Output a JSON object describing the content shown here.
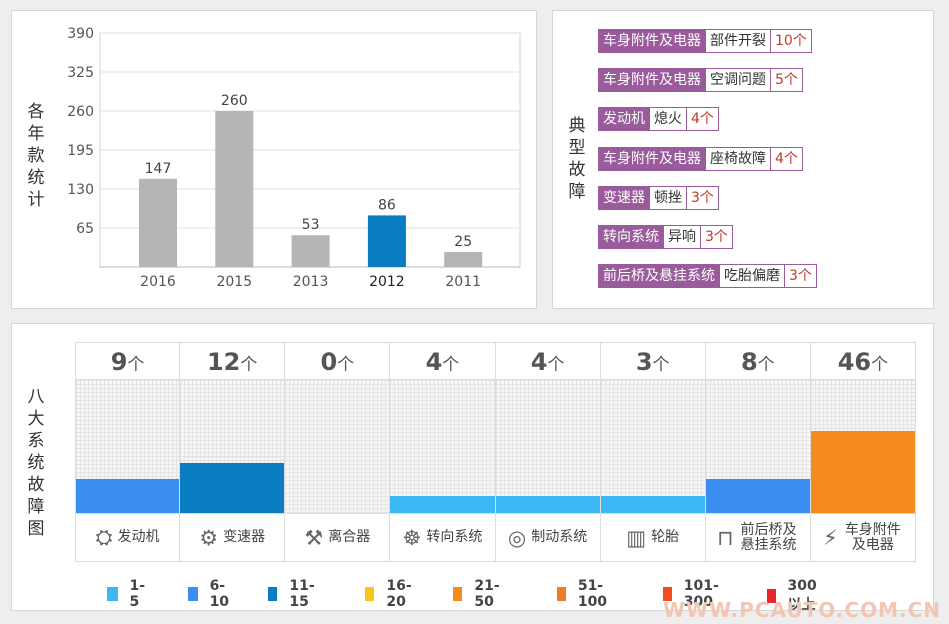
{
  "year_panel": {
    "title": "各年款统计"
  },
  "chart_data": {
    "type": "bar",
    "categories": [
      "2016",
      "2015",
      "2013",
      "2012",
      "2011"
    ],
    "values": [
      147,
      260,
      53,
      86,
      25
    ],
    "highlight": "2012",
    "yticks": [
      65,
      130,
      195,
      260,
      325,
      390
    ],
    "ylim": [
      0,
      390
    ],
    "grid": true,
    "colors": {
      "default": "#b5b5b5",
      "highlight": "#0a7cc2"
    }
  },
  "fault_panel": {
    "title": "典型故障",
    "items": [
      {
        "category": "车身附件及电器",
        "problem": "部件开裂",
        "count": "10个"
      },
      {
        "category": "车身附件及电器",
        "problem": "空调问题",
        "count": "5个"
      },
      {
        "category": "发动机",
        "problem": "熄火",
        "count": "4个"
      },
      {
        "category": "车身附件及电器",
        "problem": "座椅故障",
        "count": "4个"
      },
      {
        "category": "变速器",
        "problem": "顿挫",
        "count": "3个"
      },
      {
        "category": "转向系统",
        "problem": "异响",
        "count": "3个"
      },
      {
        "category": "前后桥及悬挂系统",
        "problem": "吃胎偏磨",
        "count": "3个"
      }
    ]
  },
  "system_panel": {
    "title": "八大系统故障图",
    "unit": "个",
    "systems": [
      {
        "count": "9",
        "value": 9,
        "label": "发动机",
        "icon": "engine-icon",
        "glyph": "⛭",
        "color": "#3a8ff0"
      },
      {
        "count": "12",
        "value": 12,
        "label": "变速器",
        "icon": "gear-shift-icon",
        "glyph": "⚙",
        "color": "#0a7cc2"
      },
      {
        "count": "0",
        "value": 0,
        "label": "离合器",
        "icon": "clutch-icon",
        "glyph": "⚒",
        "color": "#29b6f6"
      },
      {
        "count": "4",
        "value": 4,
        "label": "转向系统",
        "icon": "steering-wheel-icon",
        "glyph": "☸",
        "color": "#3bb8f3"
      },
      {
        "count": "4",
        "value": 4,
        "label": "制动系统",
        "icon": "brake-disc-icon",
        "glyph": "◎",
        "color": "#3bb8f3"
      },
      {
        "count": "3",
        "value": 3,
        "label": "轮胎",
        "icon": "tire-icon",
        "glyph": "▥",
        "color": "#3bb8f3"
      },
      {
        "count": "8",
        "value": 8,
        "label": "前后桥及悬挂系统",
        "icon": "suspension-icon",
        "glyph": "⊓",
        "color": "#3a8ff0"
      },
      {
        "count": "46",
        "value": 46,
        "label": "车身附件及电器",
        "icon": "battery-icon",
        "glyph": "⚡",
        "color": "#f58a1f"
      }
    ],
    "legend": [
      {
        "label": "1-5",
        "color": "#3bb8f3"
      },
      {
        "label": "6-10",
        "color": "#3a8ff0"
      },
      {
        "label": "11-15",
        "color": "#0a7cc2"
      },
      {
        "label": "16-20",
        "color": "#f5c518"
      },
      {
        "label": "21-50",
        "color": "#f58a1f"
      },
      {
        "label": "51-100",
        "color": "#f27b2a"
      },
      {
        "label": "101-300",
        "color": "#ef4e1f"
      },
      {
        "label": "300以上",
        "color": "#e8262b"
      }
    ]
  },
  "watermark": "WWW.PCAUTO.COM.CN"
}
